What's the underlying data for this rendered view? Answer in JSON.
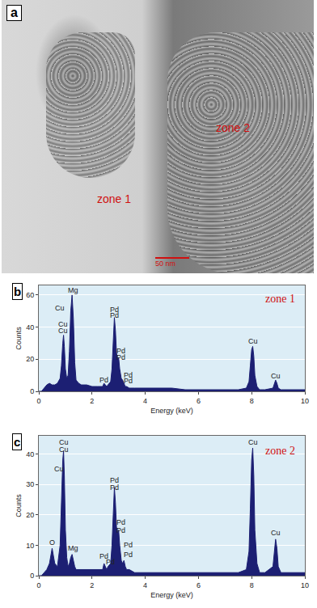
{
  "micrograph": {
    "panel_label": "a",
    "zone_labels": [
      "zone 1",
      "zone 2"
    ],
    "scale_bar": "50 nm"
  },
  "chart_data": [
    {
      "type": "area",
      "title": "b",
      "zone_label": "zone 1",
      "x_label": "Energy (keV)",
      "y_label": "Counts",
      "x": [
        0.0,
        0.1,
        0.2,
        0.3,
        0.4,
        0.5,
        0.6,
        0.7,
        0.8,
        0.85,
        0.9,
        0.93,
        0.96,
        1.0,
        1.05,
        1.1,
        1.15,
        1.2,
        1.25,
        1.3,
        1.35,
        1.4,
        1.5,
        1.6,
        1.8,
        2.0,
        2.2,
        2.4,
        2.45,
        2.5,
        2.55,
        2.6,
        2.7,
        2.75,
        2.8,
        2.84,
        2.88,
        2.92,
        2.96,
        3.0,
        3.04,
        3.1,
        3.15,
        3.2,
        3.25,
        3.3,
        3.4,
        3.6,
        3.8,
        4.0,
        4.5,
        5.0,
        5.5,
        6.0,
        6.5,
        7.0,
        7.5,
        7.8,
        7.9,
        7.95,
        8.0,
        8.04,
        8.08,
        8.12,
        8.2,
        8.3,
        8.5,
        8.8,
        8.85,
        8.9,
        8.95,
        9.0,
        9.1,
        9.5,
        10.0
      ],
      "values": [
        0,
        0,
        2,
        4,
        5,
        4,
        4,
        5,
        8,
        16,
        30,
        35,
        28,
        14,
        8,
        10,
        25,
        50,
        60,
        45,
        18,
        7,
        5,
        4,
        4,
        3,
        3,
        3,
        5,
        4,
        3,
        4,
        6,
        14,
        34,
        46,
        38,
        24,
        20,
        21,
        14,
        8,
        7,
        5,
        3,
        3,
        2,
        2,
        2,
        2,
        2,
        2,
        1,
        1,
        1,
        1,
        1,
        2,
        6,
        16,
        26,
        28,
        22,
        10,
        3,
        1,
        1,
        2,
        4,
        7,
        5,
        2,
        1,
        1,
        1
      ],
      "color": "#1c1f73",
      "xlim": [
        0,
        10
      ],
      "xticks": [
        0,
        2,
        4,
        6,
        8,
        10
      ],
      "ylim": [
        0,
        66
      ],
      "yticks": [
        0,
        20,
        40,
        60
      ],
      "grid": true,
      "annotations": [
        {
          "text": "Cu",
          "x": 0.8,
          "y": 52
        },
        {
          "text": "Mg",
          "x": 1.3,
          "y": 63
        },
        {
          "text": "Cu",
          "x": 0.9,
          "y": 42
        },
        {
          "text": "Cu",
          "x": 0.9,
          "y": 38
        },
        {
          "text": "Pd",
          "x": 2.84,
          "y": 51
        },
        {
          "text": "Pd",
          "x": 2.84,
          "y": 47.5
        },
        {
          "text": "Pd",
          "x": 3.1,
          "y": 25
        },
        {
          "text": "Pd",
          "x": 3.1,
          "y": 21
        },
        {
          "text": "Pd",
          "x": 2.45,
          "y": 7
        },
        {
          "text": "Pd",
          "x": 3.35,
          "y": 10
        },
        {
          "text": "Pd",
          "x": 3.35,
          "y": 6.5
        },
        {
          "text": "Cu",
          "x": 8.04,
          "y": 31
        },
        {
          "text": "Cu",
          "x": 8.9,
          "y": 9.5
        }
      ]
    },
    {
      "type": "area",
      "title": "c",
      "zone_label": "zone 2",
      "x_label": "Energy (keV)",
      "y_label": "Counts",
      "x": [
        0.0,
        0.1,
        0.2,
        0.3,
        0.4,
        0.5,
        0.6,
        0.7,
        0.8,
        0.85,
        0.9,
        0.93,
        0.96,
        1.0,
        1.05,
        1.1,
        1.15,
        1.2,
        1.25,
        1.3,
        1.35,
        1.4,
        1.5,
        1.6,
        1.8,
        2.0,
        2.2,
        2.4,
        2.45,
        2.5,
        2.55,
        2.6,
        2.7,
        2.75,
        2.8,
        2.84,
        2.88,
        2.92,
        2.96,
        3.0,
        3.04,
        3.1,
        3.15,
        3.2,
        3.25,
        3.3,
        3.4,
        3.6,
        3.8,
        4.0,
        4.5,
        5.0,
        5.5,
        6.0,
        6.5,
        7.0,
        7.5,
        7.8,
        7.9,
        7.95,
        8.0,
        8.04,
        8.08,
        8.12,
        8.2,
        8.3,
        8.5,
        8.8,
        8.85,
        8.9,
        8.95,
        9.0,
        9.1,
        9.5,
        10.0
      ],
      "values": [
        0,
        0,
        1,
        2,
        4,
        9,
        4,
        3,
        10,
        25,
        38,
        41,
        33,
        15,
        6,
        3,
        4,
        6,
        7,
        5,
        3,
        2,
        2,
        2,
        2,
        2,
        2,
        2,
        4,
        3,
        2,
        3,
        4,
        10,
        22,
        29,
        24,
        16,
        14,
        15,
        10,
        5,
        4,
        5,
        3,
        2,
        2,
        1,
        1,
        1,
        1,
        1,
        1,
        1,
        1,
        1,
        1,
        2,
        8,
        22,
        38,
        42,
        33,
        15,
        4,
        1,
        1,
        3,
        7,
        12,
        9,
        3,
        1,
        1,
        1
      ],
      "color": "#1c1f73",
      "xlim": [
        0,
        10
      ],
      "xticks": [
        0,
        2,
        4,
        6,
        8,
        10
      ],
      "ylim": [
        0,
        46
      ],
      "yticks": [
        0,
        10,
        20,
        30,
        40
      ],
      "grid": true,
      "annotations": [
        {
          "text": "Cu",
          "x": 0.95,
          "y": 44
        },
        {
          "text": "Cu",
          "x": 0.95,
          "y": 41.5
        },
        {
          "text": "Cu",
          "x": 0.75,
          "y": 35
        },
        {
          "text": "O",
          "x": 0.5,
          "y": 11
        },
        {
          "text": "Mg",
          "x": 1.3,
          "y": 9
        },
        {
          "text": "Pd",
          "x": 2.84,
          "y": 31.5
        },
        {
          "text": "Pd",
          "x": 2.84,
          "y": 29
        },
        {
          "text": "Pd",
          "x": 3.1,
          "y": 17.5
        },
        {
          "text": "Pd",
          "x": 3.1,
          "y": 15
        },
        {
          "text": "Pd",
          "x": 2.45,
          "y": 6.5
        },
        {
          "text": "Pd",
          "x": 3.35,
          "y": 10
        },
        {
          "text": "Pd",
          "x": 3.35,
          "y": 7
        },
        {
          "text": "Pd",
          "x": 2.7,
          "y": 4.5
        },
        {
          "text": "Cu",
          "x": 8.04,
          "y": 44
        },
        {
          "text": "Cu",
          "x": 8.9,
          "y": 14
        }
      ]
    }
  ]
}
